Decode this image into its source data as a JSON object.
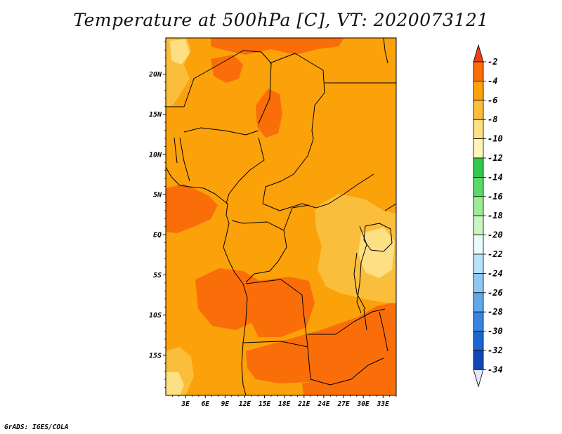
{
  "map": {
    "title": "Temperature at 500hPa [C], VT: 2020073121",
    "credit": "GrADS: IGES/COLA",
    "lat_labels": [
      "20N",
      "15N",
      "10N",
      "5N",
      "EQ",
      "5S",
      "10S",
      "15S"
    ],
    "lon_labels": [
      "3E",
      "6E",
      "9E",
      "12E",
      "15E",
      "18E",
      "21E",
      "24E",
      "27E",
      "30E",
      "33E"
    ],
    "lat_range": [
      -20,
      24.5
    ],
    "lon_range": [
      0,
      35
    ],
    "colorbar": {
      "labels": [
        "-2",
        "-4",
        "-6",
        "-8",
        "-10",
        "-12",
        "-14",
        "-16",
        "-18",
        "-20",
        "-22",
        "-24",
        "-26",
        "-28",
        "-30",
        "-32",
        "-34"
      ],
      "colors": [
        "#f03c1e",
        "#fa6e0a",
        "#fba10a",
        "#fbbe3c",
        "#fde083",
        "#fff6b8",
        "#32c84b",
        "#5ad86a",
        "#9eeb96",
        "#c8f5c2",
        "#e8fcfc",
        "#b8e2fa",
        "#8ec8f2",
        "#60a8ea",
        "#3686e0",
        "#1e64d2",
        "#0f48b4",
        "#0a2d8c",
        "#e4e6fb"
      ]
    }
  }
}
